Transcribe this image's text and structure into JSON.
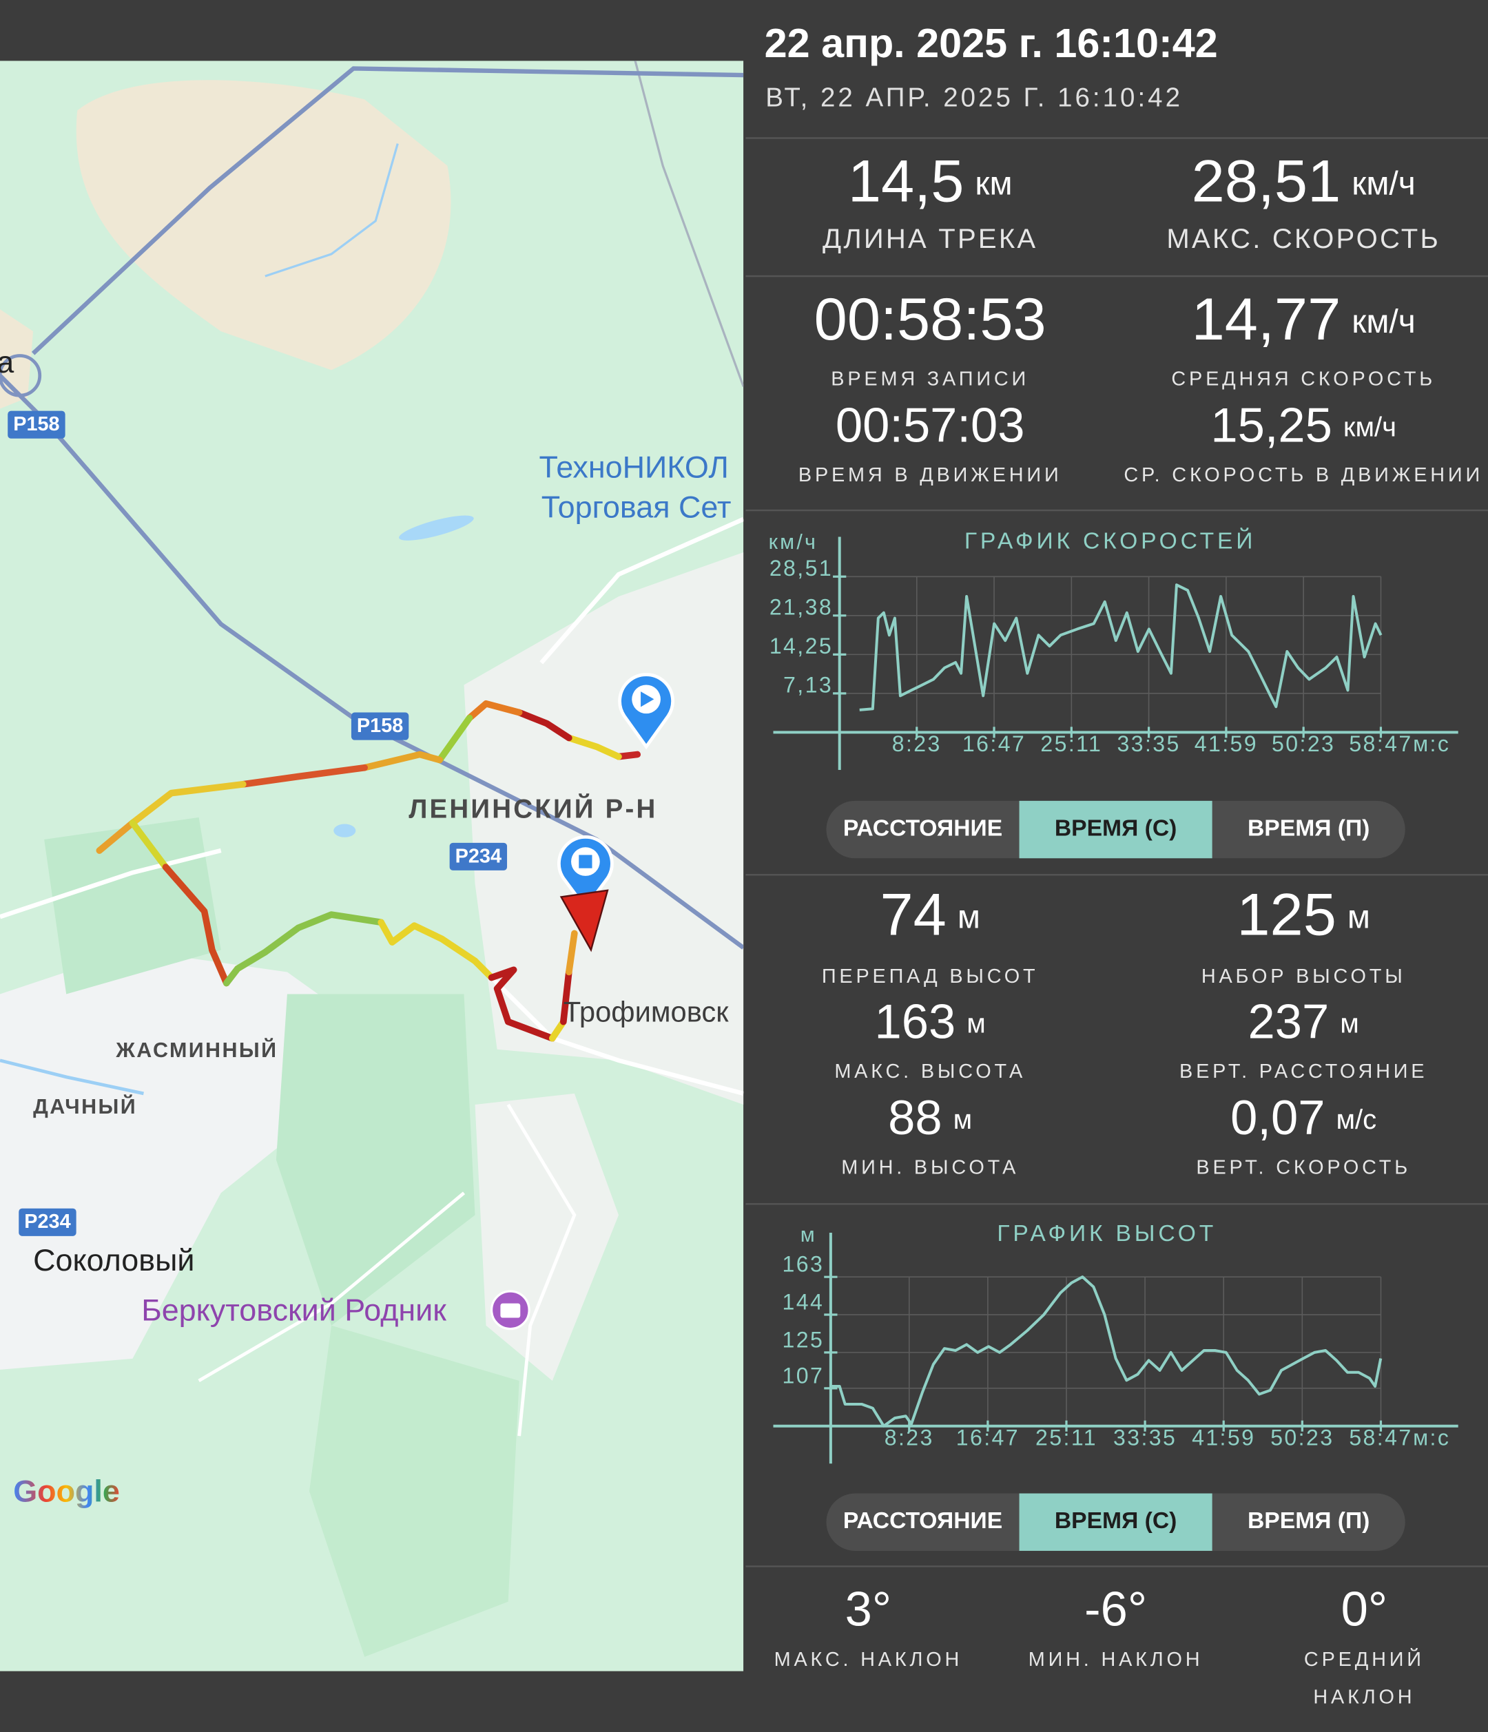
{
  "header": {
    "title": "22 апр. 2025 г. 16:10:42",
    "subtitle": "ВТ, 22 АПР. 2025 Г. 16:10:42"
  },
  "map": {
    "labels": [
      "ТехноНИКОЛ",
      "Торговая Сет",
      "Р158",
      "Р158",
      "ЛЕНИНСКИЙ Р-Н",
      "Р234",
      "Трофимовск",
      "ЖАСМИННЫЙ",
      "ДАЧНЫЙ",
      "Р234",
      "Соколовый",
      "Беркутовский Родник",
      "а"
    ],
    "brand": "Google"
  },
  "track_stats": [
    {
      "value": "14,5",
      "unit": "км",
      "label": "ДЛИНА ТРЕКА"
    },
    {
      "value": "28,51",
      "unit": "км/ч",
      "label": "МАКС. СКОРОСТЬ"
    },
    {
      "value": "00:58:53",
      "label": "ВРЕМЯ ЗАПИСИ"
    },
    {
      "value": "14,77",
      "unit": "км/ч",
      "label": "СРЕДНЯЯ СКОРОСТЬ"
    },
    {
      "value": "00:57:03",
      "label": "ВРЕМЯ В ДВИЖЕНИИ"
    },
    {
      "value": "15,25",
      "unit": "км/ч",
      "label": "СР. СКОРОСТЬ В ДВИЖЕНИИ"
    }
  ],
  "speed_chart": {
    "type": "line",
    "title": "ГРАФИК СКОРОСТЕЙ",
    "y_label": "км/ч",
    "x_label": "м:с",
    "grid": true,
    "xlim": [
      0,
      3527
    ],
    "ylim": [
      0,
      28.51
    ],
    "xticks": [
      {
        "value": 503,
        "label": "8:23"
      },
      {
        "value": 1007,
        "label": "16:47"
      },
      {
        "value": 1511,
        "label": "25:11"
      },
      {
        "value": 2015,
        "label": "33:35"
      },
      {
        "value": 2519,
        "label": "41:59"
      },
      {
        "value": 3023,
        "label": "50:23"
      },
      {
        "value": 3527,
        "label": "58:47"
      }
    ],
    "yticks": [
      {
        "value": 7.13,
        "label": "7,13"
      },
      {
        "value": 14.25,
        "label": "14,25"
      },
      {
        "value": 21.38,
        "label": "21,38"
      },
      {
        "value": 28.51,
        "label": "28,51"
      }
    ],
    "series": [
      {
        "color": "#8fd0c5",
        "x": [
          130,
          216,
          252,
          288,
          324,
          360,
          396,
          468,
          540,
          612,
          684,
          756,
          792,
          828,
          864,
          936,
          1008,
          1080,
          1152,
          1224,
          1296,
          1368,
          1440,
          1548,
          1656,
          1728,
          1800,
          1872,
          1944,
          2016,
          2088,
          2160,
          2196,
          2268,
          2340,
          2412,
          2484,
          2556,
          2664,
          2736,
          2808,
          2844,
          2916,
          2988,
          3060,
          3168,
          3240,
          3312,
          3348,
          3420,
          3492,
          3528
        ],
        "values": [
          4.1,
          4.3,
          20.9,
          21.9,
          17.8,
          20.9,
          6.7,
          7.7,
          8.7,
          9.7,
          11.8,
          12.8,
          10.8,
          24.9,
          18.9,
          6.7,
          19.9,
          16.8,
          20.9,
          10.8,
          17.8,
          15.8,
          17.8,
          18.9,
          19.9,
          23.9,
          16.8,
          21.9,
          14.8,
          18.9,
          14.8,
          10.8,
          27.0,
          26.0,
          20.9,
          14.8,
          24.9,
          17.8,
          14.8,
          10.8,
          6.7,
          4.7,
          14.8,
          11.8,
          9.7,
          11.8,
          13.8,
          7.7,
          24.9,
          13.8,
          19.9,
          17.8
        ]
      }
    ]
  },
  "speed_tabs": {
    "options": [
      "РАССТОЯНИЕ",
      "ВРЕМЯ (С)",
      "ВРЕМЯ (П)"
    ],
    "selected": 1
  },
  "elevation_stats": [
    {
      "value": "74",
      "unit": "м",
      "label": "ПЕРЕПАД ВЫСОТ"
    },
    {
      "value": "125",
      "unit": "м",
      "label": "НАБОР ВЫСОТЫ"
    },
    {
      "value": "163",
      "unit": "м",
      "label": "МАКС. ВЫСОТА"
    },
    {
      "value": "237",
      "unit": "м",
      "label": "ВЕРТ. РАССТОЯНИЕ"
    },
    {
      "value": "88",
      "unit": "м",
      "label": "МИН. ВЫСОТА"
    },
    {
      "value": "0,07",
      "unit": "м/с",
      "label": "ВЕРТ. СКОРОСТЬ"
    }
  ],
  "elevation_chart": {
    "type": "line",
    "title": "ГРАФИК ВЫСОТ",
    "y_label": "м",
    "x_label": "м:с",
    "grid": true,
    "xlim": [
      0,
      3527
    ],
    "ylim": [
      88,
      163
    ],
    "xticks": [
      {
        "value": 503,
        "label": "8:23"
      },
      {
        "value": 1007,
        "label": "16:47"
      },
      {
        "value": 1511,
        "label": "25:11"
      },
      {
        "value": 2015,
        "label": "33:35"
      },
      {
        "value": 2519,
        "label": "41:59"
      },
      {
        "value": 3023,
        "label": "50:23"
      },
      {
        "value": 3527,
        "label": "58:47"
      }
    ],
    "yticks": [
      107,
      125,
      144,
      163
    ],
    "series": [
      {
        "color": "#8fd0c5",
        "x": [
          0,
          57,
          92,
          198,
          269,
          340,
          411,
          481,
          517,
          588,
          658,
          729,
          800,
          871,
          942,
          1012,
          1083,
          1154,
          1260,
          1366,
          1473,
          1543,
          1614,
          1685,
          1756,
          1827,
          1897,
          1968,
          2039,
          2110,
          2181,
          2251,
          2322,
          2393,
          2464,
          2535,
          2605,
          2676,
          2747,
          2818,
          2889,
          2959,
          3030,
          3101,
          3172,
          3243,
          3313,
          3384,
          3455,
          3490,
          3526
        ],
        "values": [
          108,
          108,
          99,
          99,
          97,
          88,
          92,
          93,
          89,
          105,
          119,
          127,
          126,
          129,
          125,
          128,
          125,
          129,
          136,
          144,
          155,
          160,
          163,
          158,
          144,
          122,
          111,
          114,
          121,
          116,
          125,
          116,
          121,
          126,
          126,
          125,
          116,
          111,
          104,
          106,
          116,
          119,
          122,
          125,
          126,
          121,
          115,
          115,
          112,
          108,
          122
        ]
      }
    ]
  },
  "elevation_tabs": {
    "options": [
      "РАССТОЯНИЕ",
      "ВРЕМЯ (С)",
      "ВРЕМЯ (П)"
    ],
    "selected": 1
  },
  "slope_stats": [
    {
      "value": "3°",
      "label": "МАКС. НАКЛОН"
    },
    {
      "value": "-6°",
      "label": "МИН. НАКЛОН"
    },
    {
      "value": "0°",
      "label": "СРЕДНИЙ НАКЛОН"
    }
  ]
}
